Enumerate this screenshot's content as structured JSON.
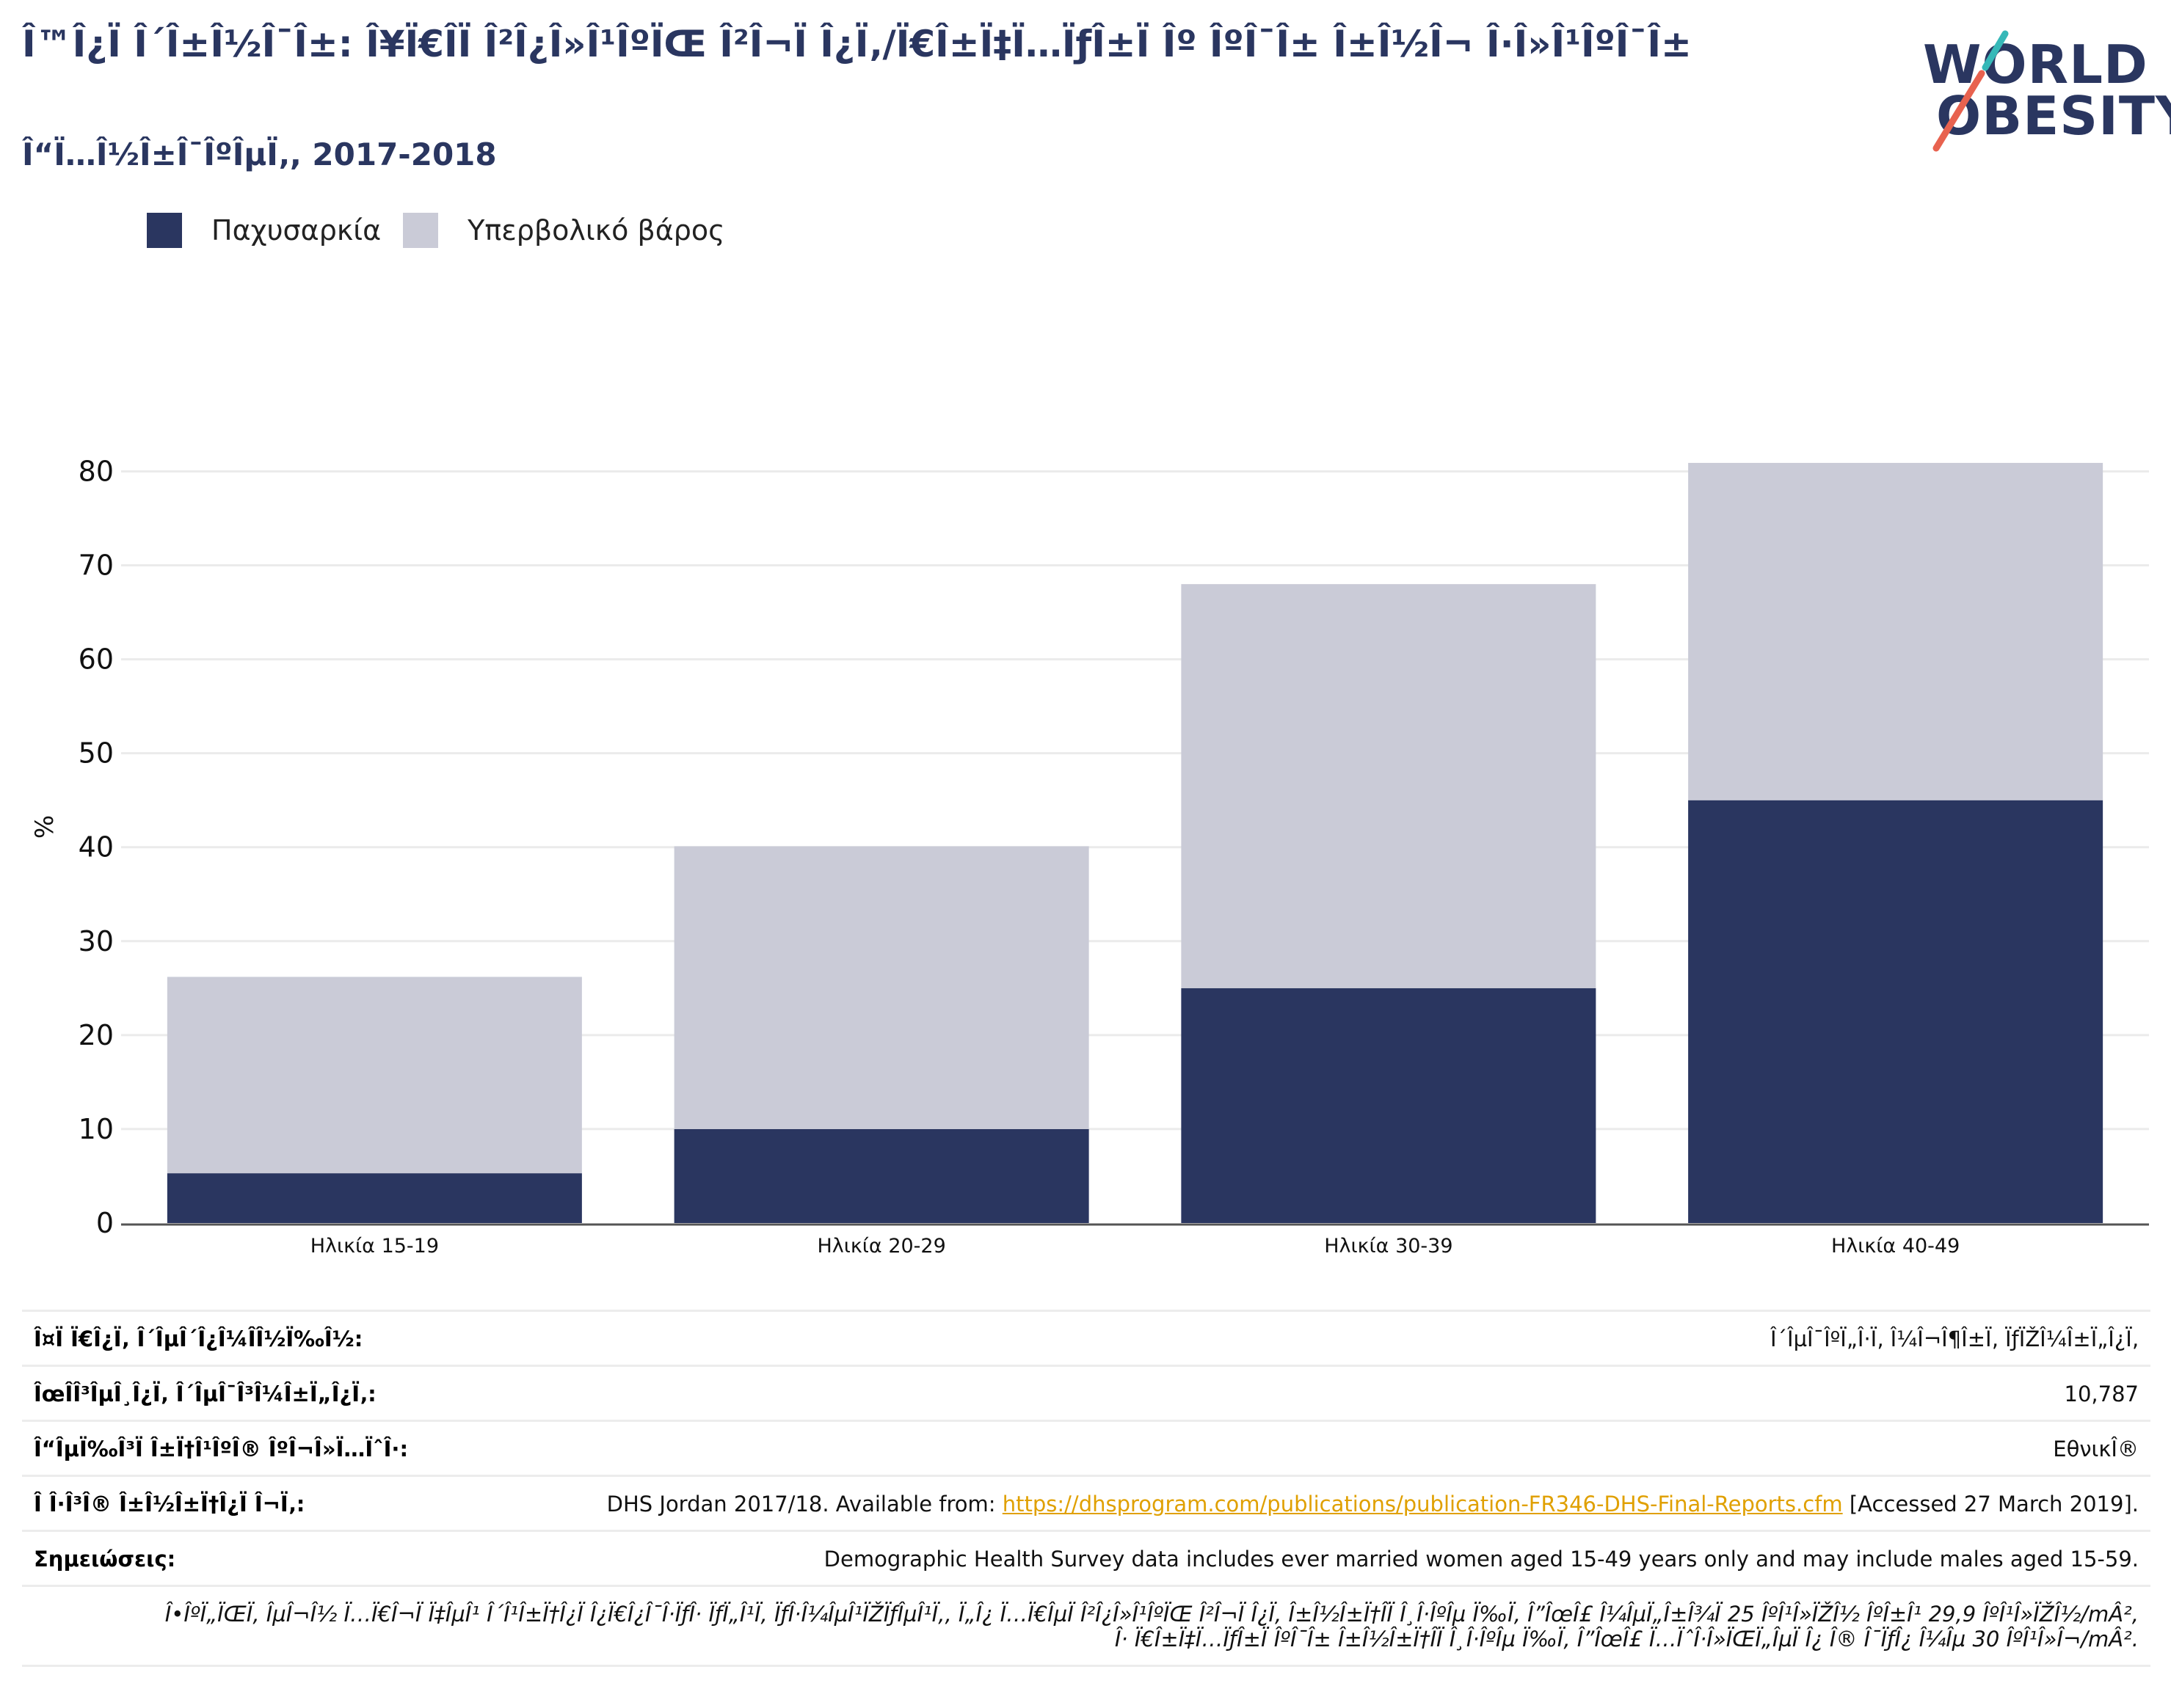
{
  "header": {
    "title": "Î™Î¿Ï Î´Î±Î½Î¯Î±: Î¥Ï€Î­Ï Î²Î¿Î»Î¹ÎºÏŒ Î²Î¬Ï Î¿Ï‚/Ï€Î±Ï‡Ï…ÏƒÎ±Ï Îº ÎºÎ¯Î± Î±Î½Î¬ Î·Î»Î¹ÎºÎ¯Î±",
    "subtitle": "Î“Ï…Î½Î±Î¯ÎºÎµÏ‚, 2017-2018"
  },
  "logo": {
    "line1": "WORLD",
    "line2": "OBESITY",
    "color": "#2a3660",
    "accent_red": "#e8624f",
    "accent_teal": "#36b8b8"
  },
  "legend": [
    {
      "label": "Παχυσαρκία",
      "color": "#2a3660"
    },
    {
      "label": "Υπερβολικό βάρος",
      "color": "#cacbd7"
    }
  ],
  "chart_data": {
    "type": "bar",
    "stacked": true,
    "categories": [
      "Ηλικία 15-19",
      "Ηλικία 20-29",
      "Ηλικία 30-39",
      "Ηλικία 40-49"
    ],
    "series": [
      {
        "name": "Παχυσαρκία",
        "values": [
          5.3,
          10.0,
          25.0,
          45.0
        ],
        "color": "#2a3660"
      },
      {
        "name": "Υπερβολικό βάρος",
        "values": [
          20.9,
          30.1,
          43.0,
          35.9
        ],
        "color": "#cacbd7"
      }
    ],
    "ylabel": "%",
    "yticks": [
      0,
      10,
      20,
      30,
      40,
      50,
      60,
      70,
      80
    ],
    "ylim": [
      0,
      85
    ],
    "grid": true
  },
  "info": {
    "rows": [
      {
        "key": "Î¤Ï Ï€Î¿Ï‚ Î´ÎµÎ´Î¿Î¼Î­Î½Ï‰Î½:",
        "value": "Î´ÎµÎ¯ÎºÏ„Î·Ï‚ Î¼Î¬Î¶Î±Ï‚ ÏƒÏŽÎ¼Î±Ï„Î¿Ï‚"
      },
      {
        "key": "ÎœÎ­Î³ÎµÎ¸Î¿Ï‚ Î´ÎµÎ¯Î³Î¼Î±Ï„Î¿Ï‚:",
        "value": "10,787"
      },
      {
        "key": "Î“ÎµÏ‰Î³Ï Î±Ï†Î¹ÎºÎ® ÎºÎ¬Î»Ï…ÏˆÎ·:",
        "value": "EθνικÎ®"
      }
    ],
    "source": {
      "key": "Î Î·Î³Î® Î±Î½Î±Ï†Î¿Ï Î¬Ï‚:",
      "prefix": "DHS Jordan 2017/18. Available from: ",
      "link": "https://dhsprogram.com/publications/publication-FR346-DHS-Final-Reports.cfm",
      "suffix": " [Accessed 27 March 2019]."
    },
    "notes": {
      "key": "Σημειώσεις:",
      "value": "Demographic Health Survey data includes ever married women aged 15-49 years only and may include males aged 15-59."
    },
    "definition": "Î•ÎºÏ„ÏŒÏ‚ ÎµÎ¬Î½ Ï…Ï€Î¬Ï Ï‡ÎµÎ¹ Î´Î¹Î±Ï†Î¿Ï Î¿Ï€Î¿Î¯Î·ÏƒÎ· ÏƒÏ„Î¹Ï‚ ÏƒÎ·Î¼ÎµÎ¹ÏŽÏƒÎµÎ¹Ï‚, Ï„Î¿ Ï…Ï€ÎµÏ Î²Î¿Î»Î¹ÎºÏŒ Î²Î¬Ï Î¿Ï‚ Î±Î½Î±Ï†Î­Ï Î¸Î·ÎºÎµ Ï‰Ï‚ Î”ÎœÎ£ Î¼ÎµÏ„Î±Î¾Ï 25 ÎºÎ¹Î»ÏŽÎ½ ÎºÎ±Î¹ 29,9 ÎºÎ¹Î»ÏŽÎ½/mÂ², Î· Ï€Î±Ï‡Ï…ÏƒÎ±Ï ÎºÎ¯Î± Î±Î½Î±Ï†Î­Ï Î¸Î·ÎºÎµ Ï‰Ï‚ Î”ÎœÎ£ Ï…ÏˆÎ·Î»ÏŒÏ„ÎµÏ Î¿ Î® Î¯ÏƒÎ¿ Î¼Îµ 30 ÎºÎ¹Î»Î¬/mÂ²."
  }
}
